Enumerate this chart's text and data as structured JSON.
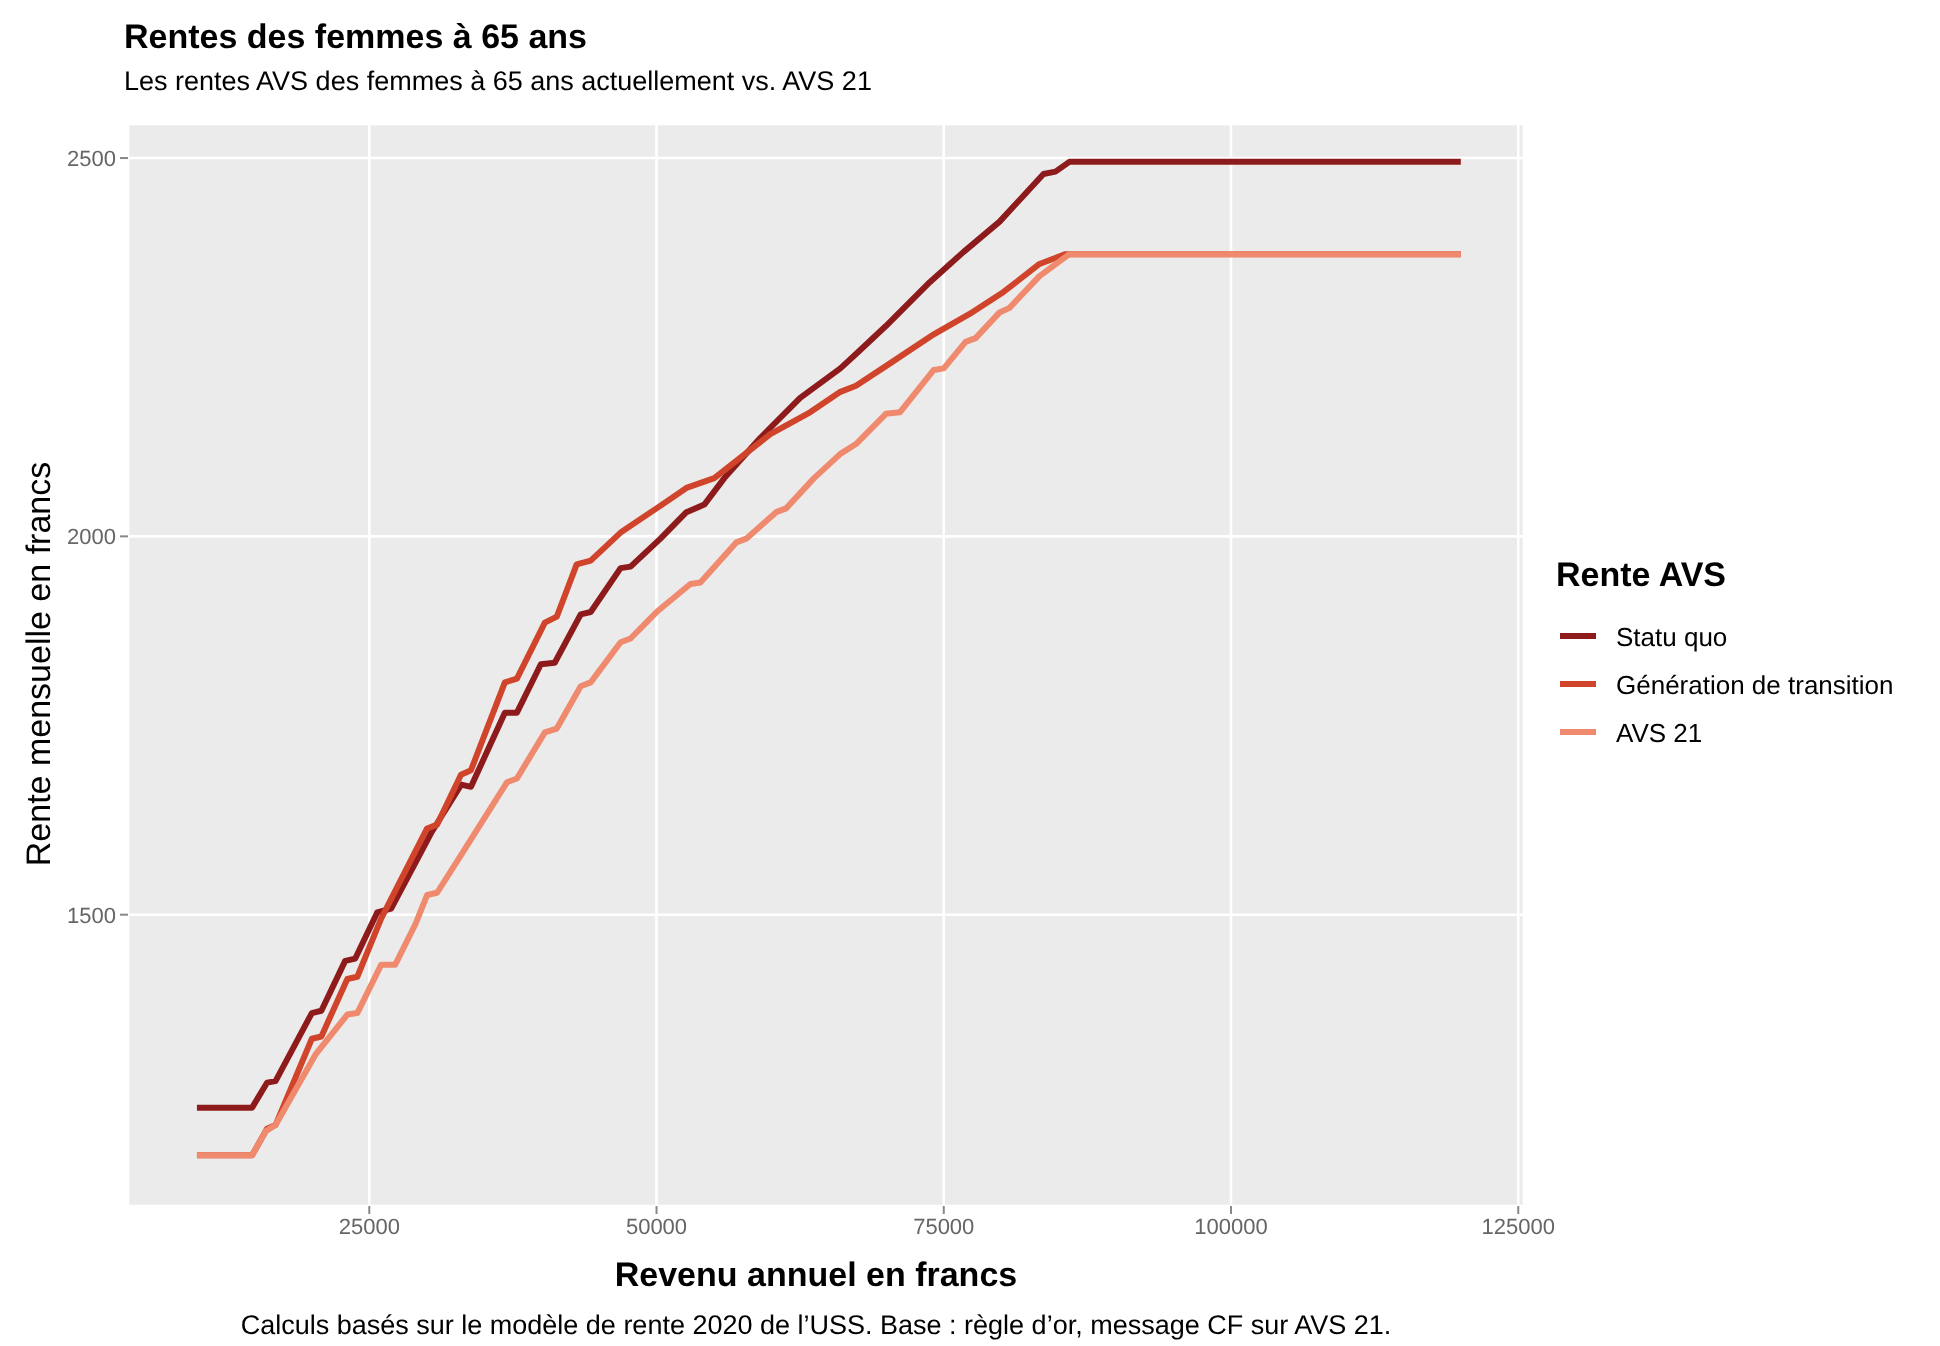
{
  "chart_data": {
    "type": "line",
    "title": "Rentes des femmes à 65 ans",
    "subtitle": "Les rentes AVS des femmes à 65 ans actuellement vs. AVS 21",
    "xlabel": "Revenu annuel en francs",
    "ylabel": "Rente mensuelle en francs",
    "legend_title": "Rente AVS",
    "annotations": [
      "Calculs basés sur le modèle de rente 2020 de l’USS. Base : règle d’or, message CF sur AVS 21."
    ],
    "xlim": [
      4000,
      125500
    ],
    "xticks": [
      25000,
      50000,
      75000,
      100000,
      125000
    ],
    "ylim": [
      1115,
      2545
    ],
    "yticks": [
      1500,
      2000,
      2500
    ],
    "grid": true,
    "legend": "right",
    "marker": "none",
    "line_style": "solid",
    "series": [
      {
        "name": "Statu quo",
        "color": "#8e1b1b",
        "x": [
          10000,
          14800,
          16100,
          16840,
          20000,
          20830,
          22900,
          23780,
          25690,
          26900,
          30380,
          33000,
          33850,
          36800,
          37850,
          39930,
          41140,
          43400,
          44270,
          46870,
          47740,
          50340,
          52600,
          54160,
          55900,
          59020,
          62500,
          66000,
          67360,
          69960,
          73780,
          76730,
          79860,
          83680,
          84720,
          85930,
          120000
        ],
        "values": [
          1245,
          1245,
          1278,
          1280,
          1370,
          1373,
          1439,
          1442,
          1503,
          1508,
          1608,
          1672,
          1669,
          1767,
          1767,
          1831,
          1833,
          1897,
          1900,
          1958,
          1960,
          1997,
          2032,
          2042,
          2077,
          2130,
          2183,
          2222,
          2241,
          2278,
          2336,
          2376,
          2416,
          2479,
          2482,
          2495,
          2495
        ]
      },
      {
        "name": "Génération de transition",
        "color": "#d0442b",
        "x": [
          10000,
          14800,
          16100,
          16840,
          20000,
          20830,
          23090,
          23960,
          26040,
          30030,
          30900,
          32980,
          33850,
          36800,
          37850,
          40280,
          41320,
          43050,
          44270,
          46870,
          50000,
          52600,
          55030,
          59900,
          63360,
          66000,
          67360,
          69960,
          74130,
          77250,
          80200,
          83330,
          85590,
          120000
        ],
        "values": [
          1182,
          1182,
          1217,
          1222,
          1336,
          1339,
          1415,
          1418,
          1495,
          1614,
          1619,
          1685,
          1691,
          1807,
          1812,
          1886,
          1894,
          1963,
          1968,
          2005,
          2037,
          2064,
          2077,
          2135,
          2164,
          2191,
          2199,
          2225,
          2267,
          2294,
          2323,
          2360,
          2373,
          2373
        ]
      },
      {
        "name": "AVS 21",
        "color": "#ef8a6e",
        "x": [
          10000,
          14800,
          16000,
          16840,
          20310,
          23090,
          23960,
          26040,
          27260,
          29000,
          30030,
          30900,
          33330,
          36980,
          37850,
          40280,
          41320,
          43400,
          44270,
          46870,
          47740,
          50000,
          52950,
          53820,
          56940,
          57810,
          60410,
          61280,
          63710,
          66000,
          67360,
          69960,
          71180,
          74130,
          75000,
          76900,
          77770,
          79860,
          80720,
          83330,
          85930,
          120000
        ],
        "values": [
          1182,
          1182,
          1214,
          1222,
          1315,
          1368,
          1370,
          1434,
          1434,
          1487,
          1526,
          1529,
          1587,
          1675,
          1680,
          1741,
          1746,
          1802,
          1807,
          1860,
          1865,
          1900,
          1937,
          1939,
          1992,
          1997,
          2032,
          2037,
          2077,
          2109,
          2122,
          2162,
          2164,
          2220,
          2222,
          2257,
          2262,
          2296,
          2302,
          2344,
          2373,
          2373
        ]
      }
    ]
  }
}
